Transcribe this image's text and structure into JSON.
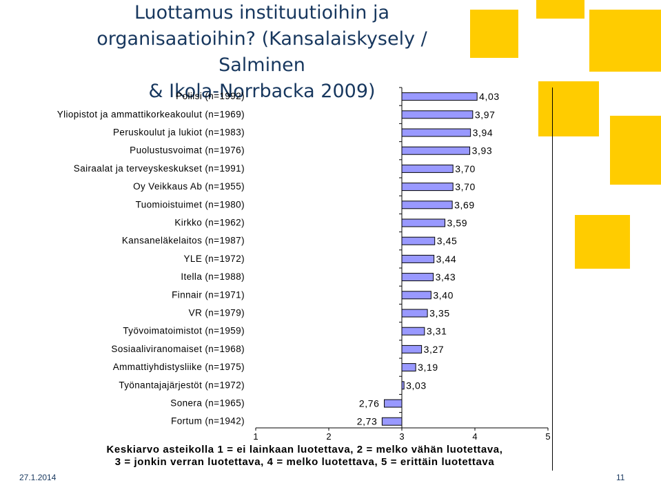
{
  "slide": {
    "title_line1": "Luottamus instituutioihin ja",
    "title_line2": "organisaatioihin? (Kansalaiskysely / Salminen",
    "title_line3": "& Ikola-Norrbacka 2009)",
    "date": "27.1.2014",
    "page_number": "11",
    "note_line1": "Keskiarvo asteikolla 1 = ei lainkaan luotettava, 2 = melko vähän luotettava,",
    "note_line2": "3 = jonkin verran luotettava, 4 = melko luotettava, 5 = erittäin luotettava",
    "accent_color": "#ffcc00",
    "title_color": "#17375e"
  },
  "chart_data": {
    "type": "bar",
    "orientation": "horizontal",
    "categories": [
      "Poliisi (n=1992)",
      "Yliopistot ja ammattikorkeakoulut (n=1969)",
      "Peruskoulut ja lukiot (n=1983)",
      "Puolustusvoimat (n=1976)",
      "Sairaalat ja terveyskeskukset (n=1991)",
      "Oy Veikkaus Ab (n=1955)",
      "Tuomioistuimet (n=1980)",
      "Kirkko (n=1962)",
      "Kansaneläkelaitos (n=1987)",
      "YLE (n=1972)",
      "Itella (n=1988)",
      "Finnair (n=1971)",
      "VR (n=1979)",
      "Työvoimatoimistot (n=1959)",
      "Sosiaaliviranomaiset (n=1968)",
      "Ammattiyhdistysliike (n=1975)",
      "Työnantajajärjestöt (n=1972)",
      "Sonera (n=1965)",
      "Fortum (n=1942)"
    ],
    "values": [
      4.03,
      3.97,
      3.94,
      3.93,
      3.7,
      3.7,
      3.69,
      3.59,
      3.45,
      3.44,
      3.43,
      3.4,
      3.35,
      3.31,
      3.27,
      3.19,
      3.03,
      2.76,
      2.73
    ],
    "value_labels": [
      "4,03",
      "3,97",
      "3,94",
      "3,93",
      "3,70",
      "3,70",
      "3,69",
      "3,59",
      "3,45",
      "3,44",
      "3,43",
      "3,40",
      "3,35",
      "3,31",
      "3,27",
      "3,19",
      "3,03",
      "2,76",
      "2,73"
    ],
    "baseline": 3,
    "xlim": [
      1,
      5
    ],
    "xticks": [
      "1",
      "2",
      "3",
      "4",
      "5"
    ],
    "bar_color": "#9999ff",
    "bar_border": "#000000"
  }
}
